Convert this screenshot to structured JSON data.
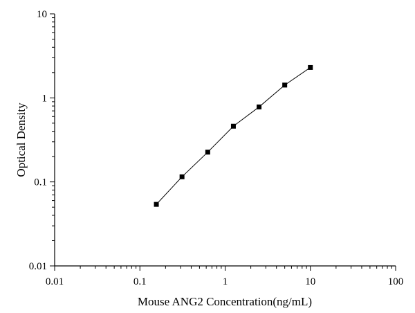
{
  "chart_data": {
    "type": "scatter",
    "title": "",
    "xlabel": "Mouse ANG2 Concentration(ng/mL)",
    "ylabel": "Optical Density",
    "x_scale": "log",
    "y_scale": "log",
    "xlim": [
      0.01,
      100
    ],
    "ylim": [
      0.01,
      10
    ],
    "x_ticks": [
      "0.01",
      "0.1",
      "1",
      "10",
      "100"
    ],
    "y_ticks": [
      "0.01",
      "0.1",
      "1",
      "10"
    ],
    "grid": false,
    "legend": "none",
    "marker": "filled-square",
    "fit_line": "connecting line",
    "colors": {
      "marker": "#000000",
      "line": "#000000",
      "axis": "#000000"
    },
    "series": [
      {
        "x": [
          0.156,
          0.312,
          0.625,
          1.25,
          2.5,
          5,
          10
        ],
        "y": [
          0.054,
          0.115,
          0.226,
          0.46,
          0.78,
          1.42,
          2.3
        ]
      }
    ]
  }
}
